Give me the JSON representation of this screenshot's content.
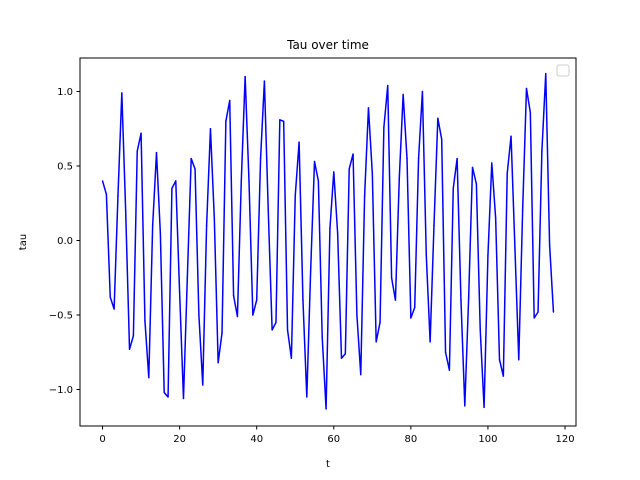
{
  "chart_data": {
    "type": "line",
    "title": "Tau over time",
    "xlabel": "t",
    "ylabel": "tau",
    "xlim": [
      -5.85,
      122.85
    ],
    "ylim": [
      -1.245,
      1.225
    ],
    "xticks": [
      0,
      20,
      40,
      60,
      80,
      100,
      120
    ],
    "yticks": [
      -1.0,
      -0.5,
      0.0,
      0.5,
      1.0
    ],
    "xtick_labels": [
      "0",
      "20",
      "40",
      "60",
      "80",
      "100",
      "120"
    ],
    "ytick_labels": [
      "−1.0",
      "−0.5",
      "0.0",
      "0.5",
      "1.0"
    ],
    "grid": false,
    "legend": {
      "placement": "top-right",
      "entries": []
    },
    "series": [
      {
        "color": "#0000ff",
        "x": [
          0,
          1,
          2,
          3,
          4,
          5,
          6,
          7,
          8,
          9,
          10,
          11,
          12,
          13,
          14,
          15,
          16,
          17,
          18,
          19,
          20,
          21,
          22,
          23,
          24,
          25,
          26,
          27,
          28,
          29,
          30,
          31,
          32,
          33,
          34,
          35,
          36,
          37,
          38,
          39,
          40,
          41,
          42,
          43,
          44,
          45,
          46,
          47,
          48,
          49,
          50,
          51,
          52,
          53,
          54,
          55,
          56,
          57,
          58,
          59,
          60,
          61,
          62,
          63,
          64,
          65,
          66,
          67,
          68,
          69,
          70,
          71,
          72,
          73,
          74,
          75,
          76,
          77,
          78,
          79,
          80,
          81,
          82,
          83,
          84,
          85,
          86,
          87,
          88,
          89,
          90,
          91,
          92,
          93,
          94,
          95,
          96,
          97,
          98,
          99,
          100,
          101,
          102,
          103,
          104,
          105,
          106,
          107,
          108,
          109,
          110,
          111,
          112,
          113,
          114,
          115,
          116,
          117
        ],
        "y": [
          0.4,
          0.31,
          -0.38,
          -0.46,
          0.3,
          0.99,
          0.2,
          -0.73,
          -0.64,
          0.6,
          0.72,
          -0.54,
          -0.92,
          0.1,
          0.59,
          0.05,
          -1.02,
          -1.05,
          0.35,
          0.4,
          -0.35,
          -1.06,
          -0.25,
          0.55,
          0.48,
          -0.5,
          -0.97,
          0.1,
          0.75,
          0.15,
          -0.82,
          -0.62,
          0.8,
          0.94,
          -0.37,
          -0.51,
          0.4,
          1.1,
          0.4,
          -0.5,
          -0.4,
          0.55,
          1.07,
          0.2,
          -0.6,
          -0.55,
          0.81,
          0.8,
          -0.6,
          -0.79,
          0.3,
          0.66,
          -0.4,
          -1.05,
          -0.2,
          0.53,
          0.4,
          -0.65,
          -1.13,
          0.08,
          0.46,
          0.05,
          -0.79,
          -0.76,
          0.48,
          0.58,
          -0.5,
          -0.9,
          0.3,
          0.89,
          0.45,
          -0.68,
          -0.55,
          0.76,
          1.04,
          -0.25,
          -0.4,
          0.42,
          0.98,
          0.55,
          -0.52,
          -0.45,
          0.55,
          1.0,
          -0.1,
          -0.68,
          0.1,
          0.82,
          0.68,
          -0.75,
          -0.87,
          0.35,
          0.55,
          -0.4,
          -1.11,
          -0.38,
          0.49,
          0.38,
          -0.6,
          -1.12,
          -0.1,
          0.52,
          0.15,
          -0.8,
          -0.91,
          0.45,
          0.7,
          -0.05,
          -0.8,
          0.2,
          1.02,
          0.86,
          -0.52,
          -0.48,
          0.6,
          1.12,
          -0.03,
          -0.48
        ]
      }
    ]
  }
}
